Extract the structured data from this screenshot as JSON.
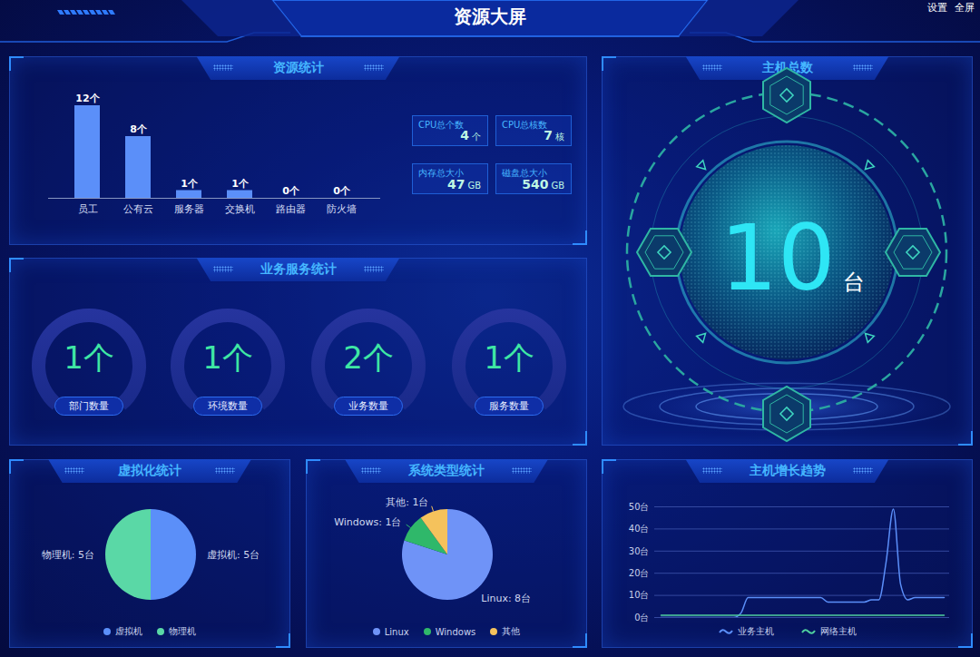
{
  "header": {
    "title": "资源大屏",
    "links": [
      "设置",
      "全屏"
    ]
  },
  "resource_cards": [
    {
      "label": "CPU总个数",
      "value": 4,
      "unit": "个"
    },
    {
      "label": "CPU总核数",
      "value": 7,
      "unit": "核"
    },
    {
      "label": "内存总大小",
      "value": 47,
      "unit": "GB"
    },
    {
      "label": "磁盘总大小",
      "value": 540,
      "unit": "GB"
    }
  ],
  "business_stats": {
    "title": "业务服务统计",
    "items": [
      {
        "label": "部门数量",
        "value": 1,
        "unit": "个"
      },
      {
        "label": "环境数量",
        "value": 1,
        "unit": "个"
      },
      {
        "label": "业务数量",
        "value": 2,
        "unit": "个"
      },
      {
        "label": "服务数量",
        "value": 1,
        "unit": "个"
      }
    ]
  },
  "host_total": {
    "title": "主机总数",
    "value": 10,
    "unit": "台"
  },
  "chart_data": [
    {
      "type": "bar",
      "title": "资源统计",
      "categories": [
        "员工",
        "公有云",
        "服务器",
        "交换机",
        "路由器",
        "防火墙"
      ],
      "values": [
        12,
        8,
        1,
        1,
        0,
        0
      ],
      "value_labels": [
        "12个",
        "8个",
        "1个",
        "1个",
        "0个",
        "0个"
      ],
      "color": "#5b8ff9",
      "data_labels": true,
      "tick_labels": "x"
    },
    {
      "type": "pie",
      "title": "虚拟化统计",
      "categories": [
        "虚拟机",
        "物理机"
      ],
      "values": [
        5,
        5
      ],
      "value_labels": [
        "虚拟机: 5台",
        "物理机: 5台"
      ],
      "colors": [
        "#5b8ff9",
        "#5ad8a6"
      ],
      "data_labels": true,
      "legend": "bottom"
    },
    {
      "type": "pie",
      "title": "系统类型统计",
      "categories": [
        "Linux",
        "Windows",
        "其他"
      ],
      "values": [
        8,
        1,
        1
      ],
      "value_labels": [
        "Linux: 8台",
        "Windows: 1台",
        "其他: 1台"
      ],
      "colors": [
        "#6f93f7",
        "#2fb86a",
        "#f5c25c"
      ],
      "data_labels": true,
      "legend": "bottom"
    },
    {
      "type": "line",
      "title": "主机增长趋势",
      "categories": [
        null,
        null,
        null,
        null,
        null,
        null,
        null,
        null,
        null,
        null,
        null,
        null,
        null,
        null,
        null,
        null,
        null,
        null,
        null,
        null,
        null,
        null,
        null,
        null,
        null,
        null,
        null,
        null,
        null,
        null,
        null,
        null,
        null,
        null,
        null,
        null,
        null,
        null,
        null,
        null
      ],
      "series": [
        {
          "name": "业务主机",
          "color": "#5b8ff9",
          "values": [
            0,
            0,
            0,
            0,
            0,
            0,
            0,
            0,
            0,
            0,
            0,
            2,
            9,
            9,
            9,
            9,
            9,
            9,
            9,
            9,
            9,
            9,
            9,
            7,
            7,
            7,
            7,
            7,
            7,
            8,
            8,
            25,
            49,
            15,
            8,
            9,
            9,
            9,
            9,
            9
          ]
        },
        {
          "name": "网络主机",
          "color": "#4fcf9e",
          "values": [
            1,
            1,
            1,
            1,
            1,
            1,
            1,
            1,
            1,
            1,
            1,
            1,
            1,
            1,
            1,
            1,
            1,
            1,
            1,
            1,
            1,
            1,
            1,
            1,
            1,
            1,
            1,
            1,
            1,
            1,
            1,
            1,
            1,
            1,
            1,
            1,
            1,
            1,
            1,
            1
          ]
        }
      ],
      "ylim": [
        0,
        50
      ],
      "yticks": [
        {
          "value": 0,
          "label": "0台"
        },
        {
          "value": 10,
          "label": "10台"
        },
        {
          "value": 20,
          "label": "20台"
        },
        {
          "value": 30,
          "label": "30台"
        },
        {
          "value": 40,
          "label": "40台"
        },
        {
          "value": 50,
          "label": "50台"
        }
      ],
      "grid": true,
      "tick_labels": "y",
      "legend": "bottom"
    }
  ]
}
